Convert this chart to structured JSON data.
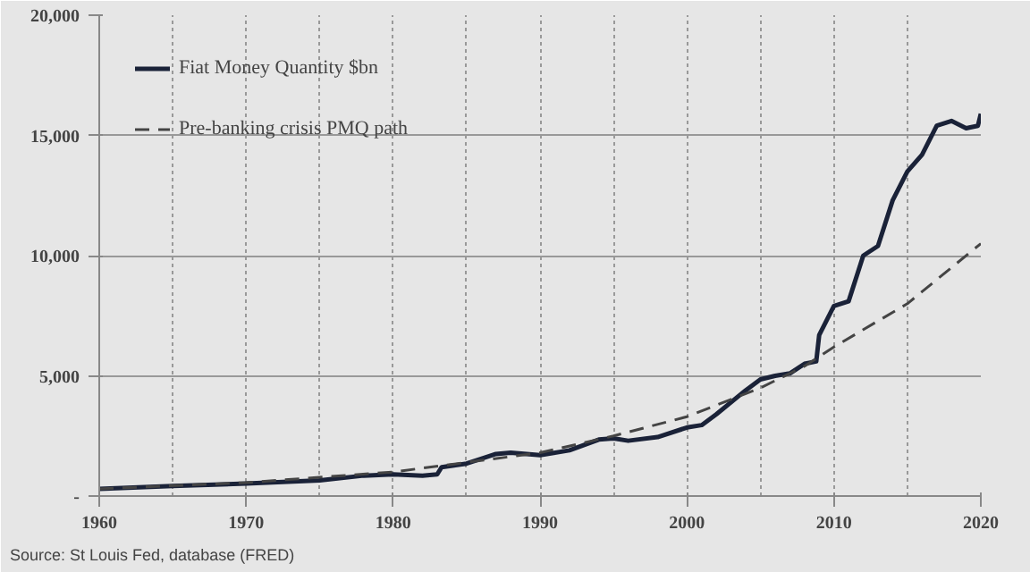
{
  "chart_data": {
    "type": "line",
    "xlim": [
      1960,
      2020
    ],
    "xticks": [
      1960,
      1970,
      1980,
      1990,
      2000,
      2010,
      2020
    ],
    "ylim": [
      0,
      20000
    ],
    "yticks": [
      {
        "value": 0,
        "label": "-"
      },
      {
        "value": 5000,
        "label": "5,000"
      },
      {
        "value": 10000,
        "label": "10,000"
      },
      {
        "value": 15000,
        "label": "15,000"
      },
      {
        "value": 20000,
        "label": "20,000"
      }
    ],
    "grid": true,
    "legend": "top left",
    "annotations": [
      "Source: St Louis Fed, database (FRED)"
    ],
    "series": [
      {
        "name": "Fiat Money Quantity $bn",
        "color": "#1a2238",
        "line_style": "solid",
        "x": [
          1960,
          1965,
          1970,
          1975,
          1978,
          1980,
          1982,
          1983,
          1983.3,
          1985,
          1987,
          1988,
          1990,
          1992,
          1994,
          1995,
          1996,
          1998,
          2000,
          2001,
          2002,
          2004,
          2005,
          2006,
          2007,
          2008,
          2008.8,
          2009,
          2010,
          2011,
          2012,
          2013,
          2014,
          2015,
          2016,
          2017,
          2018,
          2019,
          2019.8,
          2020
        ],
        "values": [
          300,
          420,
          520,
          650,
          850,
          900,
          850,
          900,
          1200,
          1350,
          1750,
          1800,
          1700,
          1900,
          2350,
          2400,
          2300,
          2450,
          2850,
          2950,
          3400,
          4400,
          4850,
          5000,
          5100,
          5500,
          5600,
          6700,
          7900,
          8100,
          10000,
          10400,
          12300,
          13500,
          14200,
          15400,
          15600,
          15300,
          15400,
          15900
        ]
      },
      {
        "name": "Pre-banking crisis PMQ path",
        "color": "#444444",
        "line_style": "dashed",
        "x": [
          1960,
          1970,
          1980,
          1985,
          1990,
          1995,
          2000,
          2005,
          2008,
          2010,
          2015,
          2020
        ],
        "values": [
          300,
          560,
          1000,
          1400,
          1800,
          2500,
          3300,
          4500,
          5400,
          6200,
          8000,
          10500
        ]
      }
    ]
  }
}
